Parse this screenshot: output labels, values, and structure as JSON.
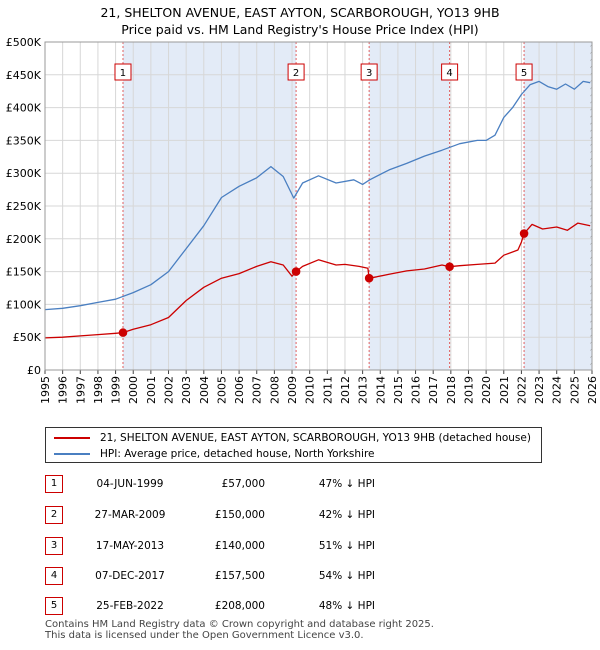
{
  "chart_data": {
    "type": "line",
    "title": "21, SHELTON AVENUE, EAST AYTON, SCARBOROUGH, YO13 9HB",
    "subtitle": "Price paid vs. HM Land Registry's House Price Index (HPI)",
    "xlim": [
      1995,
      2026
    ],
    "ylim": [
      0,
      500000
    ],
    "y_ticks": [
      {
        "value": 0,
        "label": "£0"
      },
      {
        "value": 50000,
        "label": "£50K"
      },
      {
        "value": 100000,
        "label": "£100K"
      },
      {
        "value": 150000,
        "label": "£150K"
      },
      {
        "value": 200000,
        "label": "£200K"
      },
      {
        "value": 250000,
        "label": "£250K"
      },
      {
        "value": 300000,
        "label": "£300K"
      },
      {
        "value": 350000,
        "label": "£350K"
      },
      {
        "value": 400000,
        "label": "£400K"
      },
      {
        "value": 450000,
        "label": "£450K"
      },
      {
        "value": 500000,
        "label": "£500K"
      }
    ],
    "x_ticks": [
      "1995",
      "1996",
      "1997",
      "1998",
      "1999",
      "2000",
      "2001",
      "2002",
      "2003",
      "2004",
      "2005",
      "2006",
      "2007",
      "2008",
      "2009",
      "2010",
      "2011",
      "2012",
      "2013",
      "2014",
      "2015",
      "2016",
      "2017",
      "2018",
      "2019",
      "2020",
      "2021",
      "2022",
      "2023",
      "2024",
      "2025",
      "2026"
    ],
    "series": [
      {
        "name": "21, SHELTON AVENUE, EAST AYTON, SCARBOROUGH, YO13 9HB (detached house)",
        "color": "#cc0000",
        "x": [
          1995.0,
          1996.0,
          1997.0,
          1998.0,
          1999.0,
          1999.42,
          2000.0,
          2001.0,
          2002.0,
          2003.0,
          2004.0,
          2005.0,
          2006.0,
          2007.0,
          2007.8,
          2008.5,
          2009.0,
          2009.23,
          2009.6,
          2010.5,
          2011.5,
          2012.0,
          2012.8,
          2013.3,
          2013.37,
          2013.8,
          2014.5,
          2015.5,
          2016.5,
          2017.5,
          2017.93,
          2018.5,
          2019.5,
          2020.5,
          2021.0,
          2021.8,
          2022.0,
          2022.15,
          2022.6,
          2023.2,
          2024.0,
          2024.6,
          2025.2,
          2025.9
        ],
        "y": [
          49000,
          50000,
          52000,
          54000,
          56000,
          57000,
          62000,
          69000,
          80000,
          106000,
          126000,
          140000,
          147000,
          158000,
          165000,
          160000,
          143000,
          150000,
          158000,
          168000,
          160000,
          161000,
          158000,
          155000,
          140000,
          142000,
          146000,
          151000,
          154000,
          160000,
          157500,
          159000,
          161000,
          163000,
          175000,
          183000,
          195000,
          208000,
          222000,
          215000,
          218000,
          213000,
          224000,
          220000
        ]
      },
      {
        "name": "HPI: Average price, detached house, North Yorkshire",
        "color": "#4a7fc1",
        "x": [
          1995.0,
          1996.0,
          1997.0,
          1998.0,
          1999.0,
          2000.0,
          2001.0,
          2002.0,
          2003.0,
          2004.0,
          2005.0,
          2006.0,
          2007.0,
          2007.8,
          2008.5,
          2009.1,
          2009.6,
          2010.5,
          2011.5,
          2012.5,
          2013.0,
          2013.4,
          2014.5,
          2015.5,
          2016.5,
          2017.5,
          2018.5,
          2019.5,
          2020.0,
          2020.5,
          2021.0,
          2021.5,
          2022.0,
          2022.5,
          2023.0,
          2023.5,
          2024.0,
          2024.5,
          2025.0,
          2025.5,
          2025.9
        ],
        "y": [
          92000,
          94000,
          98000,
          103000,
          108000,
          118000,
          130000,
          150000,
          185000,
          220000,
          263000,
          280000,
          293000,
          310000,
          295000,
          262000,
          285000,
          296000,
          285000,
          290000,
          283000,
          290000,
          305000,
          315000,
          326000,
          335000,
          345000,
          350000,
          350000,
          358000,
          385000,
          400000,
          420000,
          435000,
          440000,
          432000,
          428000,
          436000,
          428000,
          440000,
          438000
        ]
      }
    ],
    "sales": [
      {
        "label": "1",
        "x": 1999.42,
        "y": 57000
      },
      {
        "label": "2",
        "x": 2009.23,
        "y": 150000
      },
      {
        "label": "3",
        "x": 2013.37,
        "y": 140000
      },
      {
        "label": "4",
        "x": 2017.93,
        "y": 157500
      },
      {
        "label": "5",
        "x": 2022.15,
        "y": 208000
      }
    ],
    "shaded_spans": [
      [
        1999.42,
        2009.23
      ],
      [
        2013.37,
        2017.93
      ],
      [
        2022.15,
        2026
      ]
    ],
    "hatched_span": [
      2025.9,
      2026
    ]
  },
  "legend": [
    {
      "label": "21, SHELTON AVENUE, EAST AYTON, SCARBOROUGH, YO13 9HB (detached house)",
      "color": "#cc0000"
    },
    {
      "label": "HPI: Average price, detached house, North Yorkshire",
      "color": "#4a7fc1"
    }
  ],
  "sales_table": [
    {
      "num": "1",
      "date": "04-JUN-1999",
      "price": "£57,000",
      "hpi": "47% ↓ HPI"
    },
    {
      "num": "2",
      "date": "27-MAR-2009",
      "price": "£150,000",
      "hpi": "42% ↓ HPI"
    },
    {
      "num": "3",
      "date": "17-MAY-2013",
      "price": "£140,000",
      "hpi": "51% ↓ HPI"
    },
    {
      "num": "4",
      "date": "07-DEC-2017",
      "price": "£157,500",
      "hpi": "54% ↓ HPI"
    },
    {
      "num": "5",
      "date": "25-FEB-2022",
      "price": "£208,000",
      "hpi": "48% ↓ HPI"
    }
  ],
  "footer": {
    "line1": "Contains HM Land Registry data © Crown copyright and database right 2025.",
    "line2": "This data is licensed under the Open Government Licence v3.0."
  }
}
